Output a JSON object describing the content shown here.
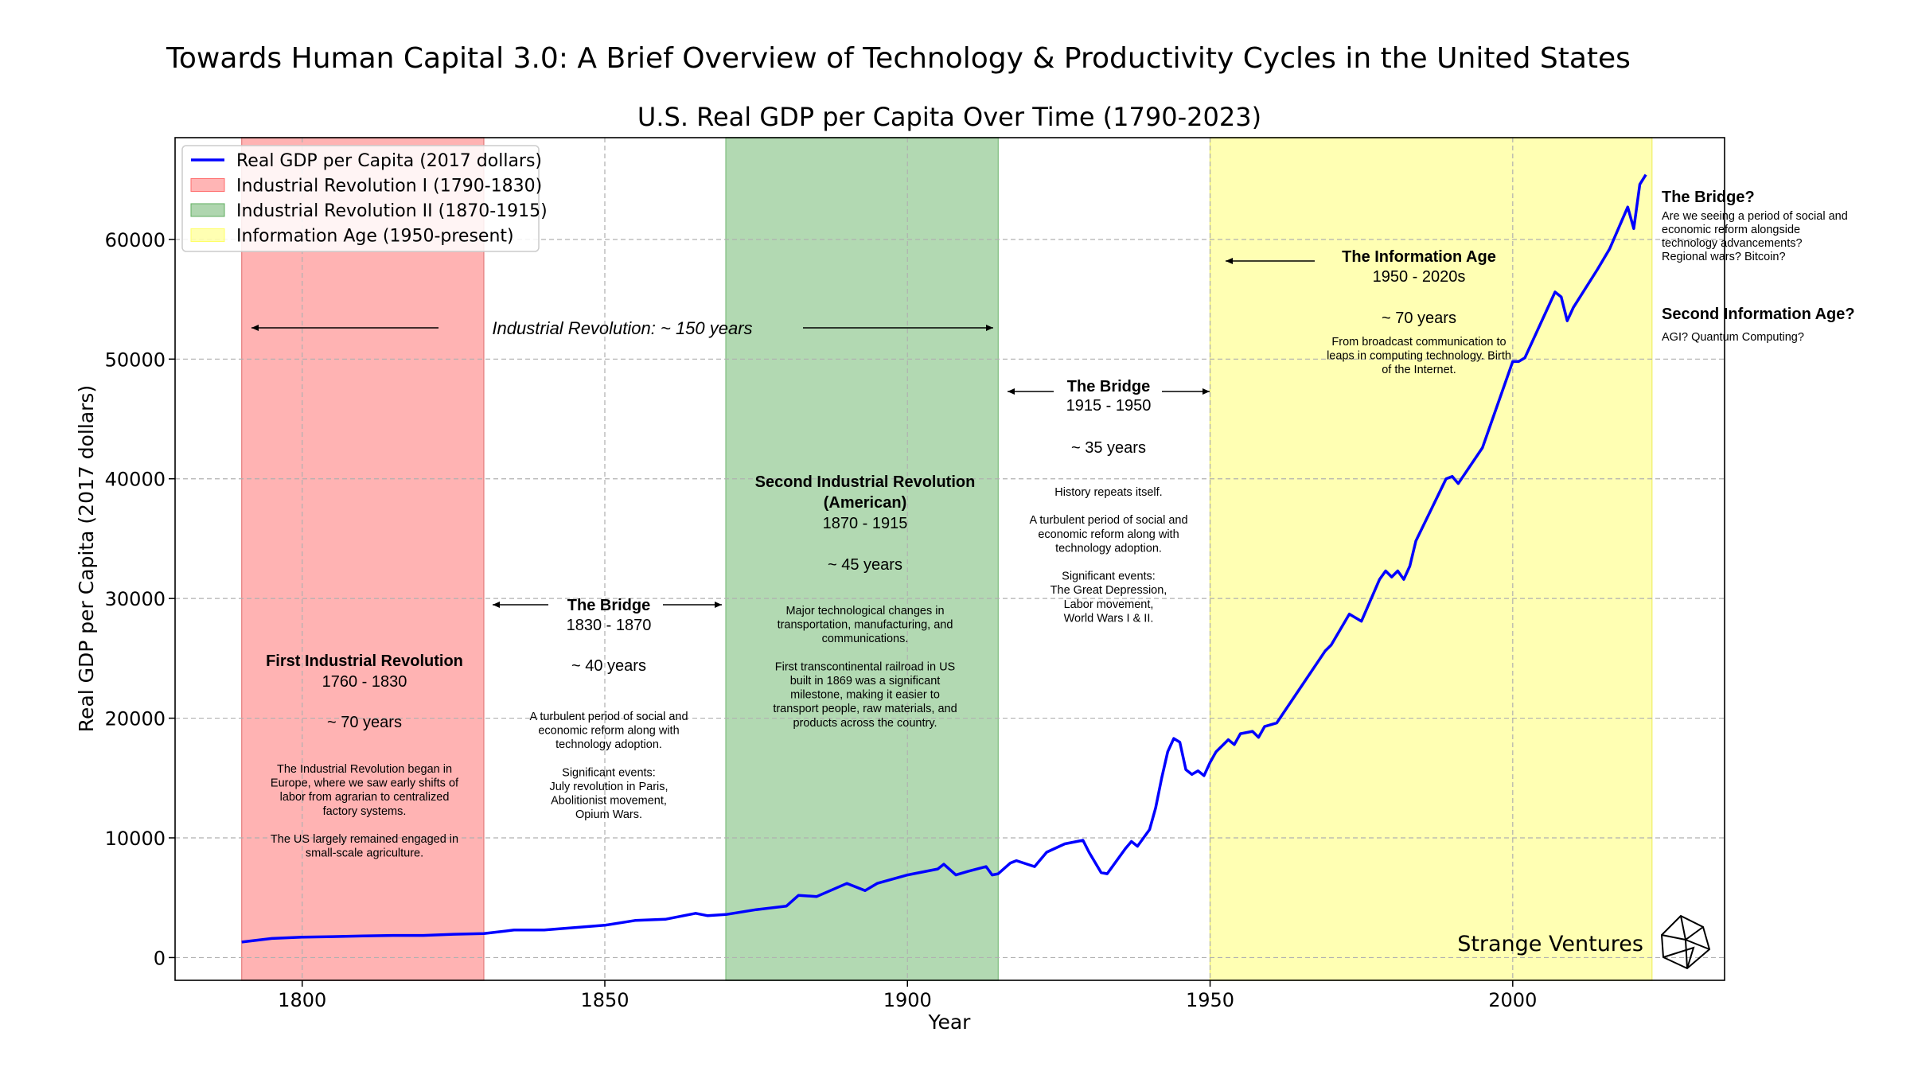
{
  "header": {
    "main_title": "Towards Human Capital 3.0: A Brief Overview of Technology & Productivity Cycles in the United States"
  },
  "chart_data": {
    "type": "line",
    "title": "U.S. Real GDP per Capita Over Time (1790-2023)",
    "xlabel": "Year",
    "ylabel": "Real GDP per Capita (2017 dollars)",
    "xlim": [
      1779,
      2035
    ],
    "ylim": [
      -1900,
      68500
    ],
    "grid": true,
    "x_ticks": [
      "1800",
      "1850",
      "1900",
      "1950",
      "2000"
    ],
    "x_tick_values": [
      1800,
      1850,
      1900,
      1950,
      2000
    ],
    "y_ticks": [
      "0",
      "10000",
      "20000",
      "30000",
      "40000",
      "50000",
      "60000"
    ],
    "y_tick_values": [
      0,
      10000,
      20000,
      30000,
      40000,
      50000,
      60000
    ],
    "legend_placement": "top-left",
    "legend": [
      {
        "label": "Real GDP per Capita (2017 dollars)",
        "color": "#0000ff",
        "kind": "line"
      },
      {
        "label": "Industrial Revolution I (1790-1830)",
        "color": "#ff6b6b",
        "kind": "span"
      },
      {
        "label": "Industrial Revolution II (1870-1915)",
        "color": "#5fae5f",
        "kind": "span"
      },
      {
        "label": "Information Age (1950-present)",
        "color": "#ffff66",
        "kind": "span"
      }
    ],
    "spans": [
      {
        "start": 1790,
        "end": 1830,
        "fill": "#ffb3b3",
        "edge": "#e88a8a"
      },
      {
        "start": 1870,
        "end": 1915,
        "fill": "#b2d9b2",
        "edge": "#8cc48c"
      },
      {
        "start": 1950,
        "end": 2023,
        "fill": "#ffffb3",
        "edge": "#f2f27a"
      }
    ],
    "series": [
      {
        "name": "Real GDP per Capita (2017 dollars)",
        "color": "#0000ff",
        "x": [
          1790,
          1795,
          1800,
          1805,
          1810,
          1815,
          1820,
          1825,
          1830,
          1835,
          1840,
          1845,
          1850,
          1855,
          1860,
          1865,
          1867,
          1870,
          1875,
          1880,
          1882,
          1885,
          1890,
          1893,
          1895,
          1900,
          1905,
          1906,
          1908,
          1910,
          1913,
          1914,
          1915,
          1917,
          1918,
          1921,
          1923,
          1926,
          1929,
          1930,
          1932,
          1933,
          1936,
          1937,
          1938,
          1940,
          1941,
          1942,
          1943,
          1944,
          1945,
          1946,
          1947,
          1948,
          1949,
          1950,
          1951,
          1953,
          1954,
          1955,
          1957,
          1958,
          1959,
          1961,
          1965,
          1969,
          1970,
          1973,
          1975,
          1978,
          1979,
          1980,
          1981,
          1982,
          1983,
          1984,
          1989,
          1990,
          1991,
          1995,
          2000,
          2001,
          2002,
          2007,
          2008,
          2009,
          2010,
          2014,
          2016,
          2019,
          2020,
          2021,
          2022
        ],
        "y": [
          1300,
          1600,
          1700,
          1750,
          1800,
          1850,
          1850,
          1950,
          2000,
          2300,
          2300,
          2500,
          2700,
          3100,
          3200,
          3700,
          3500,
          3600,
          4000,
          4300,
          5200,
          5100,
          6200,
          5600,
          6200,
          6900,
          7400,
          7800,
          6900,
          7200,
          7600,
          6900,
          7000,
          7900,
          8100,
          7600,
          8800,
          9500,
          9800,
          8800,
          7100,
          7000,
          9100,
          9700,
          9300,
          10700,
          12500,
          15000,
          17200,
          18300,
          18000,
          15700,
          15300,
          15600,
          15200,
          16300,
          17200,
          18200,
          17800,
          18700,
          18900,
          18400,
          19300,
          19600,
          22600,
          25600,
          26100,
          28700,
          28100,
          31600,
          32300,
          31800,
          32300,
          31600,
          32700,
          34800,
          40000,
          40200,
          39600,
          42600,
          49800,
          49800,
          50100,
          55600,
          55200,
          53200,
          54300,
          57500,
          59200,
          62700,
          60900,
          64600,
          65400
        ]
      }
    ],
    "annotations": {
      "industrial_revolution_span": "Industrial Revolution: ~ 150 years",
      "first_ir": {
        "title": "First Industrial Revolution",
        "years": "1760 - 1830",
        "duration": "~ 70 years",
        "lines": [
          "The Industrial Revolution began in",
          "Europe, where we saw early shifts of",
          "labor from agrarian to centralized",
          "factory systems.",
          "",
          "The US largely remained engaged in",
          "small-scale agriculture."
        ]
      },
      "bridge_1": {
        "title": "The Bridge",
        "years": "1830 - 1870",
        "duration": "~ 40 years",
        "lines": [
          "A turbulent period of social and",
          "economic reform along with",
          "technology adoption.",
          "",
          "Significant events:",
          "July revolution in Paris,",
          "Abolitionist movement,",
          "Opium Wars."
        ]
      },
      "second_ir": {
        "title": "Second Industrial Revolution",
        "title2": "(American)",
        "years": "1870 - 1915",
        "duration": "~ 45 years",
        "lines": [
          "Major technological changes in",
          "transportation, manufacturing, and",
          "communications.",
          "",
          "First transcontinental railroad in US",
          "built in 1869 was a significant",
          "milestone, making it easier to",
          "transport people, raw materials, and",
          "products across the country."
        ]
      },
      "bridge_2": {
        "title": "The Bridge",
        "years": "1915 - 1950",
        "duration": "~ 35 years",
        "lines": [
          "History repeats itself.",
          "",
          "A turbulent period of social and",
          "economic reform along with",
          "technology adoption.",
          "",
          "Significant events:",
          "The Great Depression,",
          "Labor movement,",
          "World Wars I & II."
        ]
      },
      "info_age": {
        "title": "The Information Age",
        "years": "1950 - 2020s",
        "duration": "~ 70 years",
        "lines": [
          "From broadcast communication to",
          "leaps in computing technology. Birth",
          "of the Internet."
        ]
      },
      "bridge_future": {
        "title": "The Bridge?",
        "lines": [
          "Are we seeing a period of social and",
          "economic reform alongside",
          "technology advancements?",
          "Regional wars? Bitcoin?"
        ]
      },
      "second_info_age": {
        "title": "Second Information Age?",
        "lines": [
          "AGI? Quantum Computing?"
        ]
      }
    }
  },
  "branding": {
    "name": "Strange Ventures"
  }
}
